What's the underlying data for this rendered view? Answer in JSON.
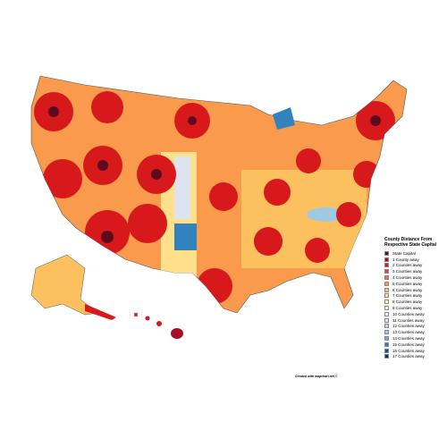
{
  "legend": {
    "title": "County Distance From Respective State Capital",
    "items": [
      {
        "label": "State Capital",
        "color": "#5e0a1e"
      },
      {
        "label": "1 County away",
        "color": "#a50f2a"
      },
      {
        "label": "2 Counties away",
        "color": "#d7191c"
      },
      {
        "label": "3 Counties away",
        "color": "#e8462b"
      },
      {
        "label": "4 Counties away",
        "color": "#f46d43"
      },
      {
        "label": "5 Counties away",
        "color": "#f99a4c"
      },
      {
        "label": "6 Counties away",
        "color": "#fdc05e"
      },
      {
        "label": "7 Counties away",
        "color": "#fee08b"
      },
      {
        "label": "8 Counties away",
        "color": "#fff3b0"
      },
      {
        "label": "9 Counties away",
        "color": "#fffde0"
      },
      {
        "label": "10 Counties away",
        "color": "#f2f2f8"
      },
      {
        "label": "11 Counties away",
        "color": "#dde3f0"
      },
      {
        "label": "12 Counties away",
        "color": "#c3d5ea"
      },
      {
        "label": "13 Counties away",
        "color": "#9ecae1"
      },
      {
        "label": "14 Counties away",
        "color": "#6baed6"
      },
      {
        "label": "15 Counties away",
        "color": "#3182bd"
      },
      {
        "label": "16 Counties away",
        "color": "#08519c"
      },
      {
        "label": "17 Counties away",
        "color": "#08306b"
      }
    ]
  },
  "credit": "Created with mapchart.net ©"
}
